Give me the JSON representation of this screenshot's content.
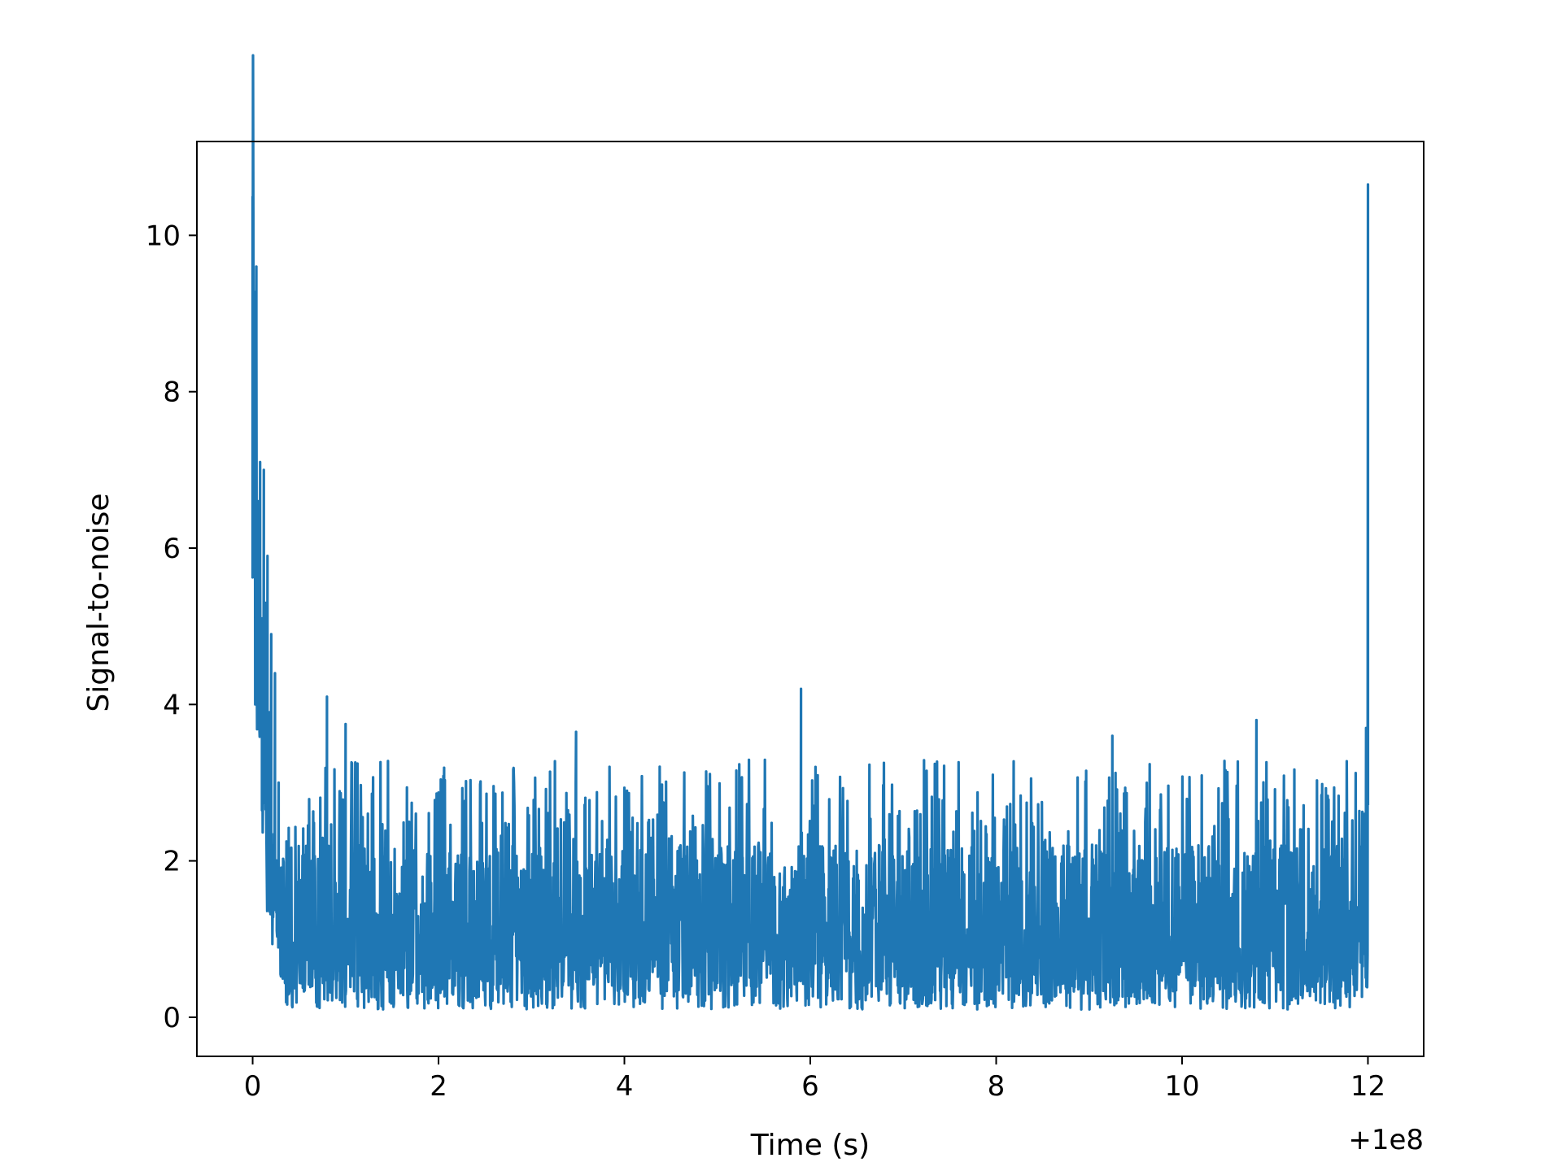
{
  "chart_data": {
    "type": "line",
    "xlabel": "Time (s)",
    "ylabel": "Signal-to-noise",
    "x_offset_label": "+1e8",
    "xlim": [
      -0.6,
      12.6
    ],
    "ylim": [
      -0.5,
      11.2
    ],
    "x_ticks": [
      {
        "value": 0,
        "label": "0"
      },
      {
        "value": 2,
        "label": "2"
      },
      {
        "value": 4,
        "label": "4"
      },
      {
        "value": 6,
        "label": "6"
      },
      {
        "value": 8,
        "label": "8"
      },
      {
        "value": 10,
        "label": "10"
      },
      {
        "value": 12,
        "label": "12"
      }
    ],
    "y_ticks": [
      {
        "value": 0,
        "label": "0"
      },
      {
        "value": 2,
        "label": "2"
      },
      {
        "value": 4,
        "label": "4"
      },
      {
        "value": 6,
        "label": "6"
      },
      {
        "value": 8,
        "label": "8"
      },
      {
        "value": 10,
        "label": "10"
      }
    ],
    "grid": false,
    "series": [
      {
        "color": "#1f77b4",
        "x_start": 0.0,
        "x_end": 12.0,
        "noise_floor": 0.1,
        "typical_level": 1.2,
        "typical_max": 3.0,
        "points": [
          [
            0.0,
            10.5
          ],
          [
            0.02,
            8.7
          ],
          [
            0.04,
            9.6
          ],
          [
            0.06,
            6.6
          ],
          [
            0.08,
            7.1
          ],
          [
            0.1,
            5.1
          ],
          [
            0.12,
            7.0
          ],
          [
            0.14,
            5.3
          ],
          [
            0.16,
            5.9
          ],
          [
            0.18,
            3.9
          ],
          [
            0.2,
            4.9
          ],
          [
            0.22,
            2.2
          ],
          [
            0.24,
            4.4
          ],
          [
            0.26,
            1.5
          ],
          [
            0.28,
            3.0
          ],
          [
            0.8,
            4.1
          ],
          [
            1.0,
            3.75
          ],
          [
            3.48,
            3.65
          ],
          [
            5.9,
            4.2
          ],
          [
            9.25,
            3.6
          ],
          [
            10.8,
            3.8
          ],
          [
            11.96,
            2.6
          ],
          [
            11.98,
            3.7
          ],
          [
            12.0,
            10.65
          ]
        ]
      }
    ]
  }
}
